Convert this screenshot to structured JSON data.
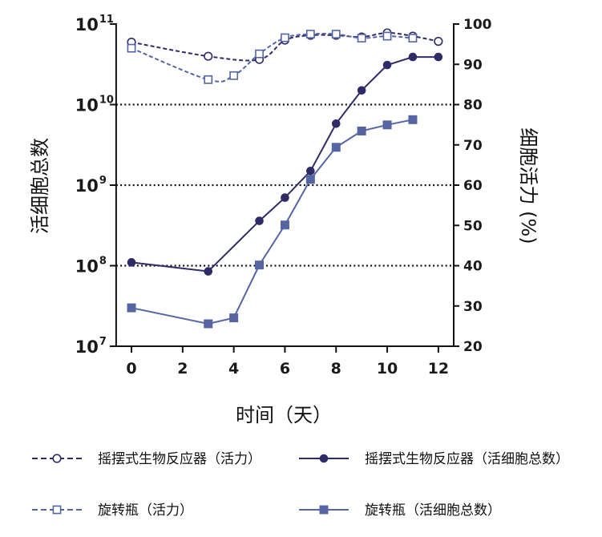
{
  "chart_data": {
    "type": "line",
    "title": "",
    "xlabel": "时间（天）",
    "ylabel_left": "活细胞总数",
    "ylabel_right": "细胞活力 (%)",
    "x_ticks": [
      "0",
      "2",
      "4",
      "6",
      "8",
      "10",
      "12"
    ],
    "xlim": [
      -0.6,
      12.6
    ],
    "y_left": {
      "scale": "log10",
      "range": [
        7,
        11
      ],
      "tick_exponents": [
        7,
        8,
        9,
        10,
        11
      ],
      "tick_base": "10"
    },
    "y_right": {
      "scale": "linear",
      "range": [
        20,
        100
      ],
      "ticks": [
        "20",
        "30",
        "40",
        "50",
        "60",
        "70",
        "80",
        "90",
        "100"
      ]
    },
    "gridlines_left_exponents": [
      8,
      9,
      10
    ],
    "legend_position": "bottom",
    "series": [
      {
        "name": "摇摆式生物反应器（活力）",
        "axis": "right",
        "style": "dashed",
        "marker": "open-circle",
        "color": "#2e2b66",
        "x": [
          0,
          3,
          5,
          6,
          7,
          8,
          9,
          10,
          11,
          12
        ],
        "y": [
          95.5,
          92,
          91.2,
          96,
          97.2,
          97.2,
          96.8,
          97.8,
          97,
          95.7
        ]
      },
      {
        "name": "摇摆式生物反应器（活细胞总数）",
        "axis": "left",
        "style": "solid",
        "marker": "filled-circle",
        "color": "#2e2b66",
        "x": [
          0,
          3,
          5,
          6,
          7,
          8,
          9,
          10,
          11,
          12
        ],
        "y": [
          110000000.0,
          85000000.0,
          360000000.0,
          700000000.0,
          1500000000.0,
          5800000000.0,
          15000000000.0,
          31000000000.0,
          39000000000.0,
          39000000000.0
        ]
      },
      {
        "name": "旋转瓶（活力）",
        "axis": "right",
        "style": "dashed",
        "marker": "open-square",
        "color": "#5565a3",
        "x": [
          0,
          3,
          4,
          5,
          6,
          7,
          8,
          9,
          10,
          11
        ],
        "y": [
          94,
          86.2,
          87.2,
          92.6,
          96.6,
          97.5,
          97.5,
          96.5,
          97,
          96.5
        ]
      },
      {
        "name": "旋转瓶（活细胞总数）",
        "axis": "left",
        "style": "solid",
        "marker": "filled-square",
        "color": "#5565a3",
        "x": [
          0,
          3,
          4,
          5,
          6,
          7,
          8,
          9,
          10,
          11
        ],
        "y": [
          30000000.0,
          19000000.0,
          22500000.0,
          102000000.0,
          320000000.0,
          1180000000.0,
          2950000000.0,
          4700000000.0,
          5600000000.0,
          6500000000.0
        ]
      }
    ]
  }
}
